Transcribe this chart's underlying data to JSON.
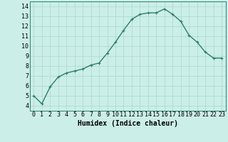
{
  "x": [
    0,
    1,
    2,
    3,
    4,
    5,
    6,
    7,
    8,
    9,
    10,
    11,
    12,
    13,
    14,
    15,
    16,
    17,
    18,
    19,
    20,
    21,
    22,
    23
  ],
  "y": [
    5.0,
    4.2,
    5.9,
    6.9,
    7.3,
    7.5,
    7.7,
    8.1,
    8.3,
    9.3,
    10.4,
    11.6,
    12.7,
    13.2,
    13.35,
    13.35,
    13.75,
    13.2,
    12.5,
    11.1,
    10.4,
    9.4,
    8.8,
    8.8
  ],
  "line_color": "#2e7d6e",
  "marker": "+",
  "marker_size": 3,
  "background_color": "#cbeee8",
  "grid_color": "#a8d8cc",
  "xlabel": "Humidex (Indice chaleur)",
  "xlim": [
    -0.5,
    23.5
  ],
  "ylim": [
    3.5,
    14.5
  ],
  "xticks": [
    0,
    1,
    2,
    3,
    4,
    5,
    6,
    7,
    8,
    9,
    10,
    11,
    12,
    13,
    14,
    15,
    16,
    17,
    18,
    19,
    20,
    21,
    22,
    23
  ],
  "yticks": [
    4,
    5,
    6,
    7,
    8,
    9,
    10,
    11,
    12,
    13,
    14
  ],
  "xlabel_fontsize": 7,
  "tick_fontsize": 6,
  "line_width": 1.0
}
